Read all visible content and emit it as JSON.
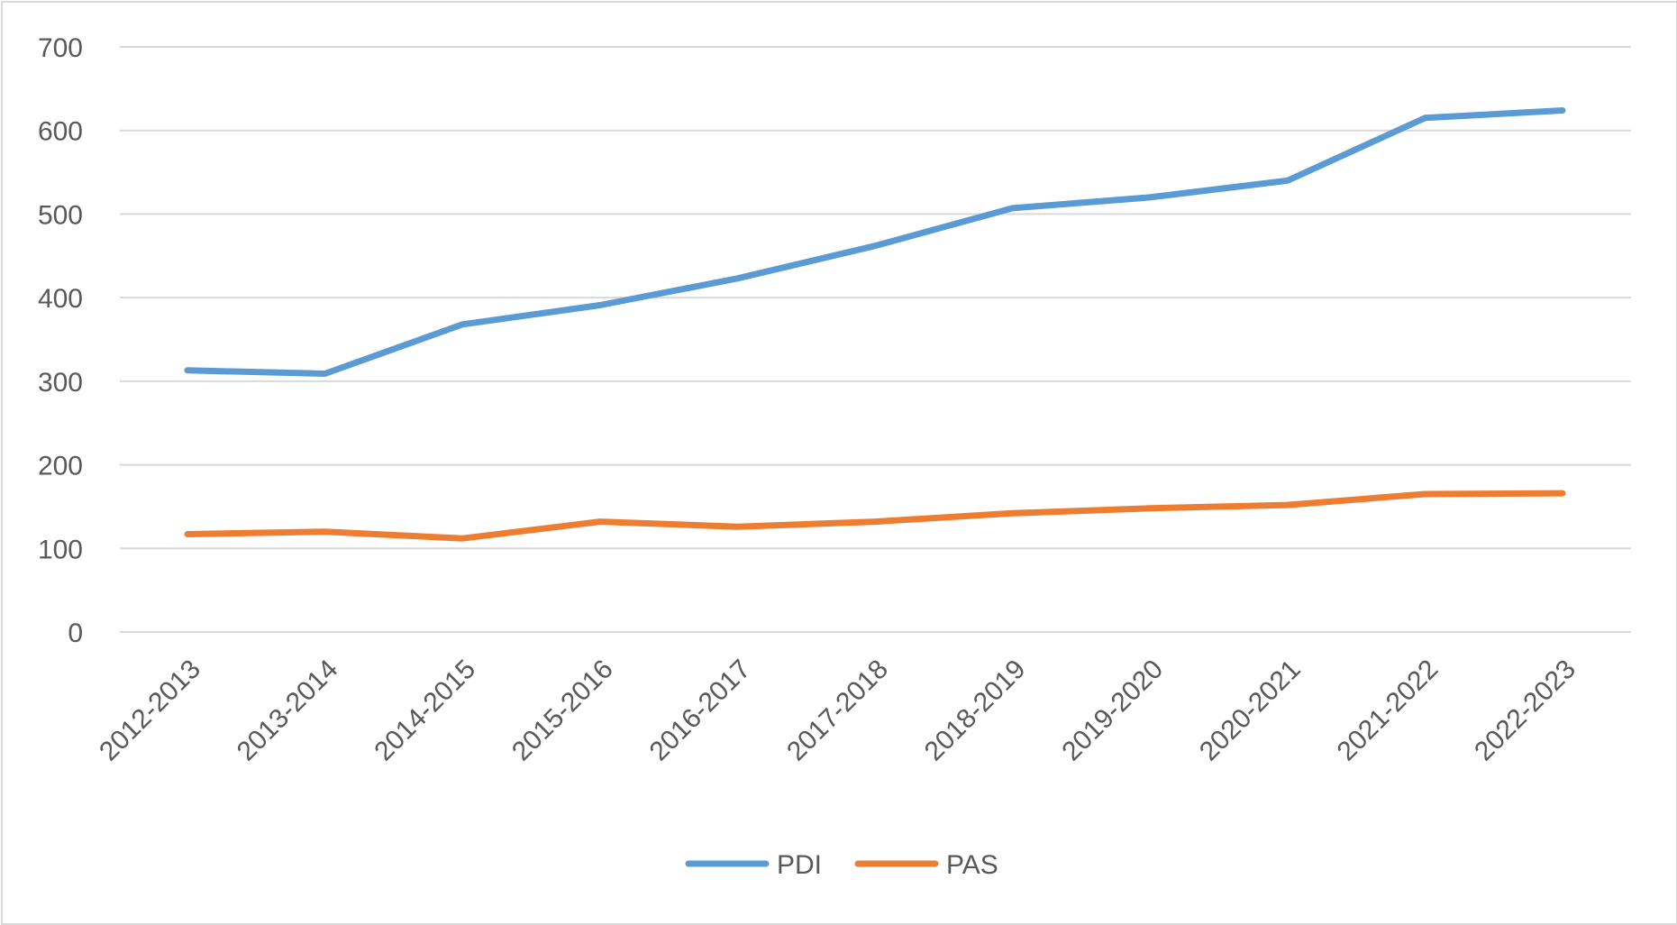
{
  "chart_data": {
    "type": "line",
    "title": "",
    "xlabel": "",
    "ylabel": "",
    "categories": [
      "2012-2013",
      "2013-2014",
      "2014-2015",
      "2015-2016",
      "2016-2017",
      "2017-2018",
      "2018-2019",
      "2019-2020",
      "2020-2021",
      "2021-2022",
      "2022-2023"
    ],
    "ylim": [
      0,
      700
    ],
    "yticks": [
      0,
      100,
      200,
      300,
      400,
      500,
      600,
      700
    ],
    "grid": true,
    "legend_position": "bottom",
    "series": [
      {
        "name": "PDI",
        "color": "#5b9bd5",
        "values": [
          313,
          309,
          368,
          391,
          423,
          462,
          507,
          520,
          540,
          615,
          624
        ]
      },
      {
        "name": "PAS",
        "color": "#ed7d31",
        "values": [
          117,
          120,
          112,
          132,
          126,
          132,
          142,
          148,
          152,
          165,
          166
        ]
      }
    ]
  }
}
